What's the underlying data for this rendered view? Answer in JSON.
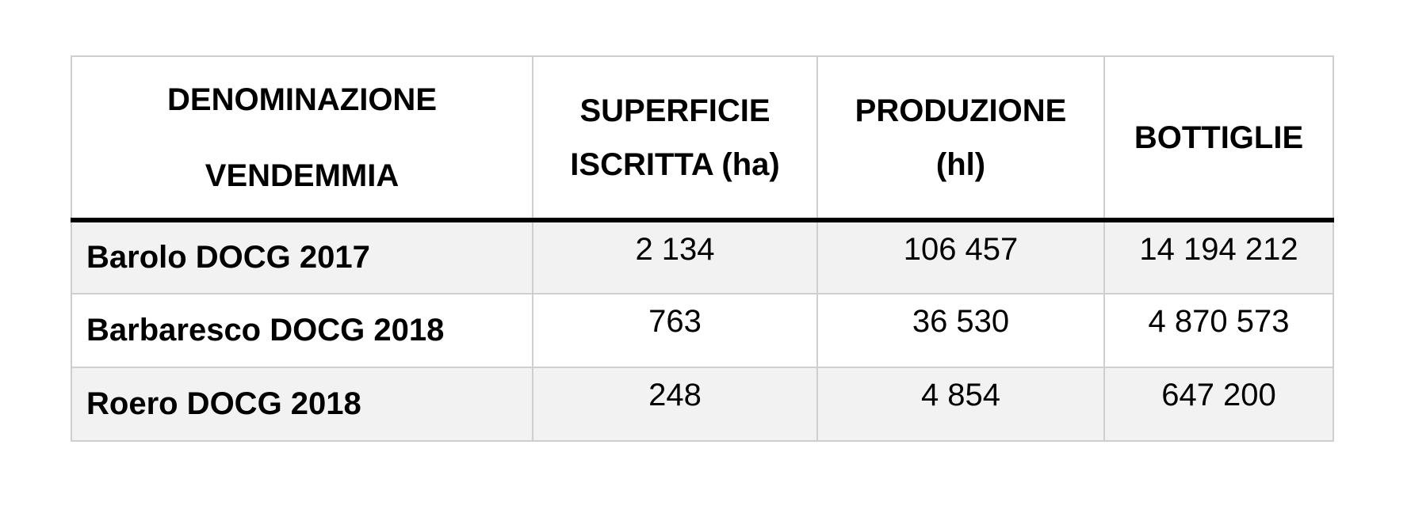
{
  "table": {
    "header": [
      [
        "DENOMINAZIONE",
        "VENDEMMIA"
      ],
      [
        "SUPERFICIE",
        "ISCRITTA (ha)"
      ],
      [
        "PRODUZIONE",
        "(hl)"
      ],
      [
        "BOTTIGLIE"
      ]
    ],
    "rows": [
      [
        "Barolo DOCG 2017",
        "2 134",
        "106 457",
        "14 194 212"
      ],
      [
        "Barbaresco DOCG 2018",
        "763",
        "36 530",
        "4 870 573"
      ],
      [
        "Roero DOCG 2018",
        "248",
        "4 854",
        "647 200"
      ]
    ]
  }
}
